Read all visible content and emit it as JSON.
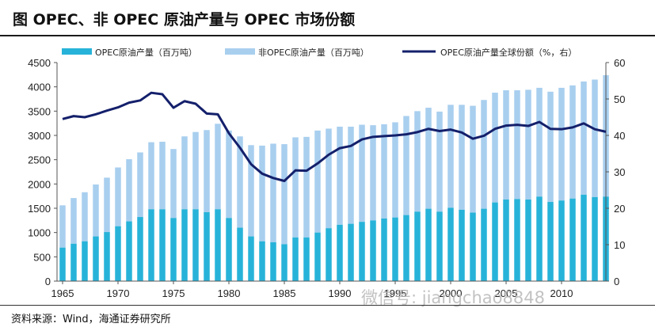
{
  "title": "图  OPEC、非 OPEC 原油产量与 OPEC 市场份额",
  "source": "资料来源：Wind，海通证券研究所",
  "watermark": "微信号: jiangchao8848",
  "colors": {
    "opec_bar": "#27b3d9",
    "non_opec_bar": "#a9cfef",
    "share_line": "#14206b"
  },
  "chart_data": {
    "type": "bar",
    "stacked": true,
    "x": [
      1965,
      1966,
      1967,
      1968,
      1969,
      1970,
      1971,
      1972,
      1973,
      1974,
      1975,
      1976,
      1977,
      1978,
      1979,
      1980,
      1981,
      1982,
      1983,
      1984,
      1985,
      1986,
      1987,
      1988,
      1989,
      1990,
      1991,
      1992,
      1993,
      1994,
      1995,
      1996,
      1997,
      1998,
      1999,
      2000,
      2001,
      2002,
      2003,
      2004,
      2005,
      2006,
      2007,
      2008,
      2009,
      2010,
      2011,
      2012,
      2013,
      2014
    ],
    "x_tick_labels": [
      "1965",
      "1970",
      "1975",
      "1980",
      "1985",
      "1990",
      "1995",
      "2000",
      "2005",
      "2010"
    ],
    "series": [
      {
        "name": "OPEC原油产量（百万吨）",
        "type": "bar",
        "axis": "left",
        "values": [
          690,
          770,
          820,
          920,
          1010,
          1130,
          1230,
          1320,
          1480,
          1480,
          1300,
          1480,
          1480,
          1420,
          1480,
          1300,
          1100,
          920,
          820,
          800,
          760,
          900,
          900,
          1000,
          1090,
          1160,
          1180,
          1220,
          1250,
          1290,
          1310,
          1360,
          1430,
          1490,
          1430,
          1510,
          1470,
          1410,
          1490,
          1620,
          1680,
          1690,
          1680,
          1740,
          1630,
          1660,
          1700,
          1780,
          1730,
          1740
        ]
      },
      {
        "name": "非OPEC原油产量（百万吨）",
        "type": "bar",
        "axis": "left",
        "values": [
          870,
          940,
          1010,
          1070,
          1120,
          1210,
          1280,
          1330,
          1380,
          1390,
          1420,
          1500,
          1590,
          1690,
          1760,
          1800,
          1880,
          1880,
          1970,
          2030,
          2060,
          2060,
          2070,
          2100,
          2050,
          2020,
          2000,
          2000,
          1960,
          1940,
          1960,
          2040,
          2070,
          2080,
          2060,
          2120,
          2160,
          2200,
          2240,
          2260,
          2250,
          2240,
          2260,
          2240,
          2270,
          2320,
          2330,
          2330,
          2420,
          2500
        ]
      },
      {
        "name": "OPEC原油产量全球份额（%，右）",
        "type": "line",
        "axis": "right",
        "values": [
          44.5,
          45.3,
          45,
          45.8,
          46.8,
          47.7,
          49,
          49.6,
          51.7,
          51.3,
          47.6,
          49.4,
          48.7,
          46,
          45.8,
          40.6,
          36.6,
          32.1,
          29.5,
          28.3,
          27.5,
          30.4,
          30.3,
          32.3,
          34.7,
          36.5,
          37.1,
          38.9,
          39.6,
          39.8,
          40,
          40.3,
          40.9,
          41.8,
          41.2,
          41.6,
          40.8,
          39.1,
          39.9,
          41.8,
          42.7,
          42.9,
          42.6,
          43.7,
          41.8,
          41.7,
          42.2,
          43.3,
          41.7,
          41
        ]
      }
    ],
    "ylim": [
      0,
      4500
    ],
    "y_ticks": [
      0,
      500,
      1000,
      1500,
      2000,
      2500,
      3000,
      3500,
      4000,
      4500
    ],
    "y2lim": [
      0,
      60
    ],
    "y2_ticks": [
      0,
      10,
      20,
      30,
      40,
      50,
      60
    ],
    "legend_position": "top",
    "grid": false
  }
}
